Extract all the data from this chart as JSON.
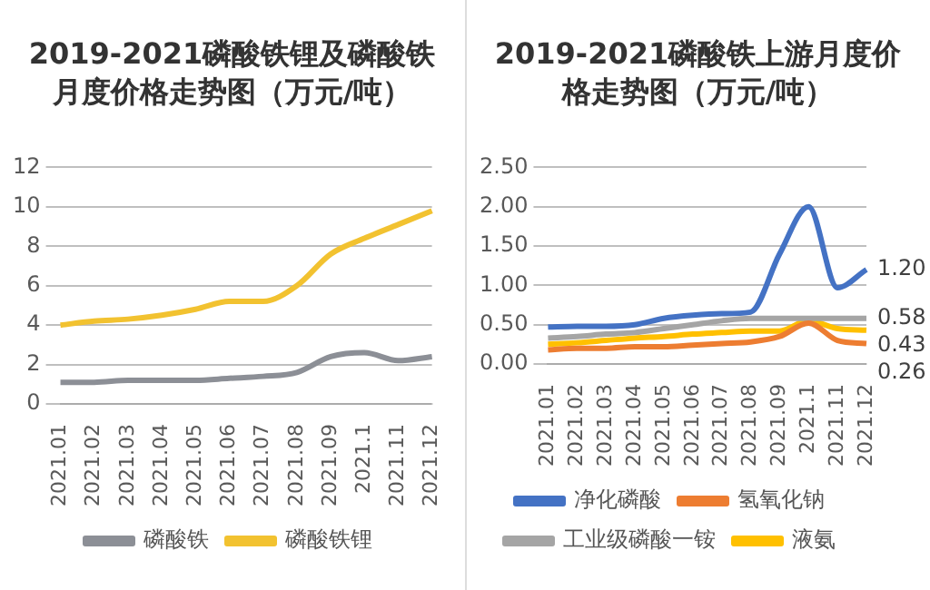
{
  "chart_data": [
    {
      "type": "line",
      "title": "2019-2021磷酸铁锂及磷酸铁月度价格走势图（万元/吨）",
      "categories": [
        "2021.01",
        "2021.02",
        "2021.03",
        "2021.04",
        "2021.05",
        "2021.06",
        "2021.07",
        "2021.08",
        "2021.09",
        "2021.1",
        "2021.11",
        "2021.12"
      ],
      "ylim": [
        0,
        12
      ],
      "yticks": [
        0,
        2,
        4,
        6,
        8,
        10,
        12
      ],
      "grid": "y",
      "legend": "bottom",
      "series": [
        {
          "name": "磷酸铁",
          "color": "#8c8f96",
          "values": [
            1.1,
            1.1,
            1.2,
            1.2,
            1.2,
            1.3,
            1.4,
            1.6,
            2.4,
            2.6,
            2.2,
            2.4
          ]
        },
        {
          "name": "磷酸铁锂",
          "color": "#f2c230",
          "values": [
            4.0,
            4.2,
            4.3,
            4.5,
            4.8,
            5.2,
            5.2,
            6.0,
            7.6,
            8.4,
            9.1,
            9.8
          ]
        }
      ]
    },
    {
      "type": "line",
      "title": "2019-2021磷酸铁上游月度价格走势图（万元/吨）",
      "categories": [
        "2021.01",
        "2021.02",
        "2021.03",
        "2021.04",
        "2021.05",
        "2021.06",
        "2021.07",
        "2021.08",
        "2021.09",
        "2021.1",
        "2021.11",
        "2021.12"
      ],
      "ylim": [
        0,
        2.5
      ],
      "yticks": [
        {
          "value": 0,
          "label": "0.00"
        },
        {
          "value": 0.5,
          "label": "0.50"
        },
        {
          "value": 1,
          "label": "1.00"
        },
        {
          "value": 1.5,
          "label": "1.50"
        },
        {
          "value": 2,
          "label": "2.00"
        },
        {
          "value": 2.5,
          "label": "2.50"
        }
      ],
      "grid": "y",
      "legend": "bottom",
      "series": [
        {
          "name": "净化磷酸",
          "color": "#4472c4",
          "values": [
            0.47,
            0.48,
            0.48,
            0.5,
            0.58,
            0.62,
            0.64,
            0.66,
            1.4,
            2.0,
            0.97,
            1.2
          ],
          "value_labels": [
            null,
            null,
            null,
            null,
            null,
            null,
            null,
            null,
            null,
            null,
            null,
            "1.20"
          ]
        },
        {
          "name": "氢氧化钠",
          "color": "#ed7d31",
          "values": [
            0.18,
            0.2,
            0.2,
            0.22,
            0.22,
            0.24,
            0.26,
            0.28,
            0.35,
            0.52,
            0.3,
            0.26
          ],
          "value_labels": [
            null,
            null,
            null,
            null,
            null,
            null,
            null,
            null,
            null,
            null,
            null,
            "0.26"
          ]
        },
        {
          "name": "工业级磷酸一铵",
          "color": "#a5a5a5",
          "values": [
            0.33,
            0.35,
            0.38,
            0.4,
            0.45,
            0.5,
            0.55,
            0.58,
            0.58,
            0.58,
            0.58,
            0.58
          ],
          "value_labels": [
            null,
            null,
            null,
            null,
            null,
            null,
            null,
            null,
            null,
            null,
            null,
            "0.58"
          ]
        },
        {
          "name": "液氨",
          "color": "#ffc000",
          "values": [
            0.25,
            0.27,
            0.3,
            0.33,
            0.35,
            0.38,
            0.4,
            0.42,
            0.42,
            0.55,
            0.45,
            0.43
          ],
          "value_labels": [
            null,
            null,
            null,
            null,
            null,
            null,
            null,
            null,
            null,
            null,
            null,
            "0.43"
          ]
        }
      ]
    }
  ]
}
